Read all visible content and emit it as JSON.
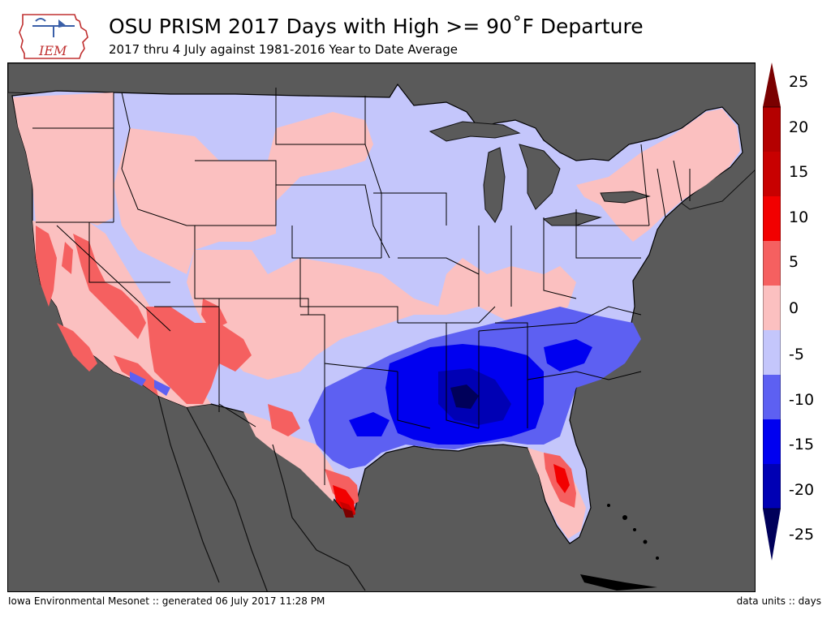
{
  "header": {
    "logo_text": "IEM",
    "title": "OSU PRISM 2017 Days with High >= 90˚F Departure",
    "subtitle": "2017 thru 4 July against 1981-2016 Year to Date Average"
  },
  "colorbar": {
    "labels": [
      "25",
      "20",
      "15",
      "10",
      "5",
      "0",
      "-5",
      "-10",
      "-15",
      "-20",
      "-25"
    ],
    "colors": {
      "gt20": "#7a0000",
      "15_20": "#c80000",
      "10_15": "#f20000",
      "5_10": "#f56060",
      "0_5": "#fbc0c0",
      "m5_0": "#c4c6fb",
      "m10_m5": "#5d60f2",
      "m15_m10": "#0000f0",
      "m20_m15": "#0000b4",
      "lt_m20": "#00005a"
    }
  },
  "map": {
    "background_color": "#5a5a5a",
    "state_line_color": "#000000"
  },
  "footer": {
    "left": "Iowa Environmental Mesonet :: generated 06 July 2017 11:28 PM",
    "right": "data units :: days"
  }
}
